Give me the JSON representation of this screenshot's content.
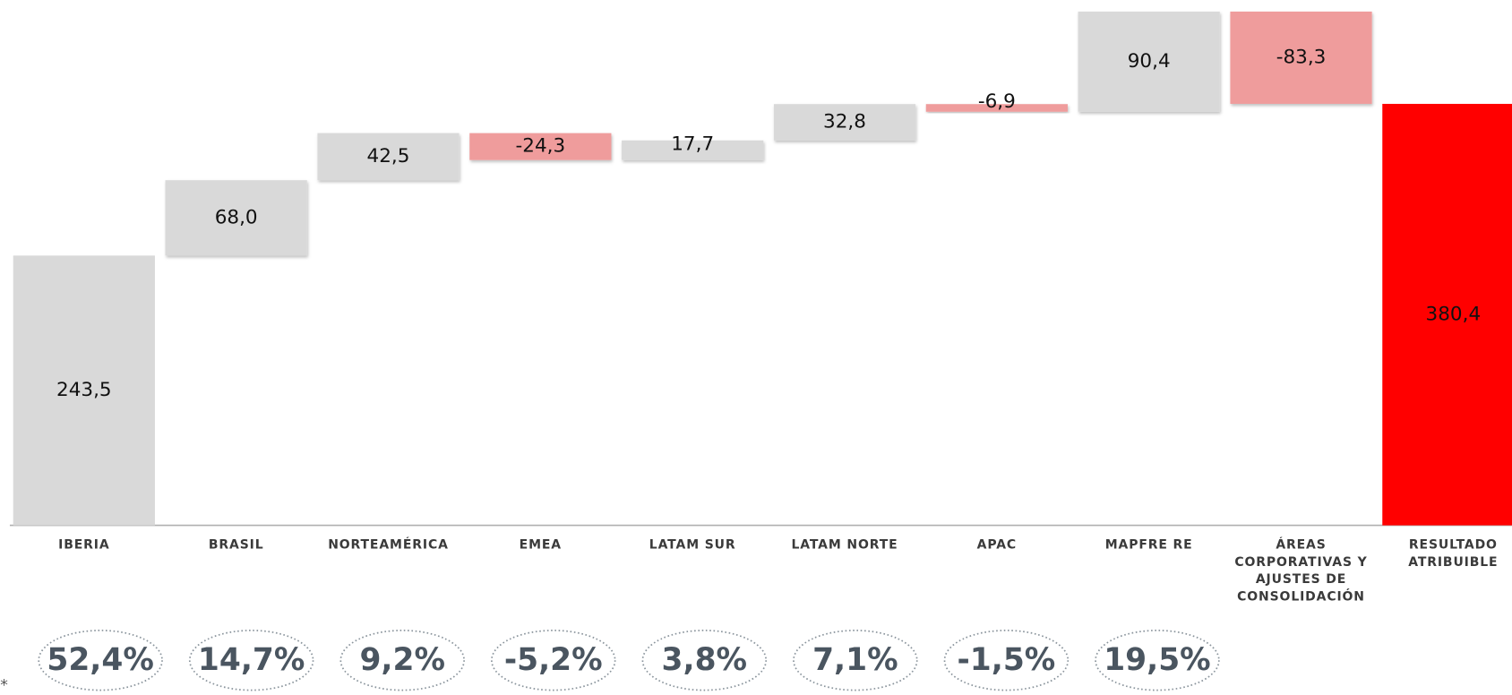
{
  "chart_data": {
    "type": "waterfall",
    "categories": [
      "IBERIA",
      "BRASIL",
      "NORTEAMÉRICA",
      "EMEA",
      "LATAM SUR",
      "LATAM NORTE",
      "APAC",
      "MAPFRE RE",
      "ÁREAS CORPORATIVAS Y AJUSTES DE CONSOLIDACIÓN",
      "RESULTADO ATRIBUIBLE"
    ],
    "values": [
      243.5,
      68.0,
      42.5,
      -24.3,
      17.7,
      32.8,
      -6.9,
      90.4,
      -83.3,
      380.4
    ],
    "value_labels": [
      "243,5",
      "68,0",
      "42,5",
      "-24,3",
      "17,7",
      "32,8",
      "-6,9",
      "90,4",
      "-83,3",
      "380,4"
    ],
    "total_index": 9,
    "colors": {
      "increase": "#d9d9d9",
      "decrease": "#ef9c9c",
      "total": "#ff0000"
    },
    "shares": {
      "values": [
        52.4,
        14.7,
        9.2,
        -5.2,
        3.8,
        7.1,
        -1.5,
        19.5
      ],
      "value_labels": [
        "52,4%",
        "14,7%",
        "9,2%",
        "-5,2%",
        "3,8%",
        "7,1%",
        "-1,5%",
        "19,5%"
      ]
    },
    "note": "*"
  }
}
